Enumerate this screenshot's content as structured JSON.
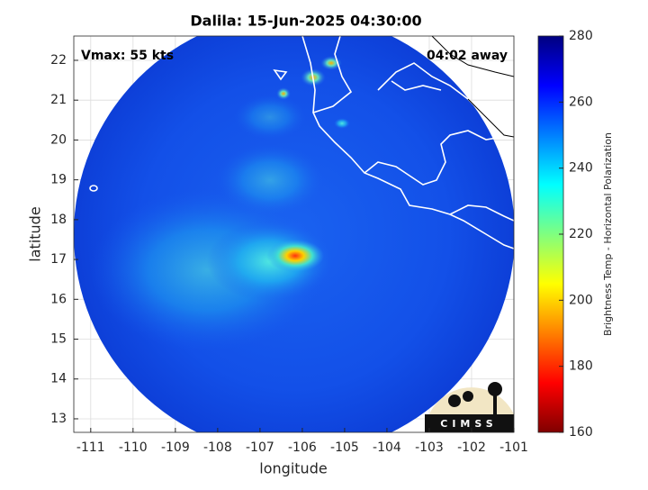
{
  "chart_data": {
    "type": "map",
    "title": "Dalila: 15-Jun-2025 04:30:00",
    "annotations": [
      "Vmax: 55 kts",
      "04:02 away"
    ],
    "xlabel": "longitude",
    "ylabel": "latitude",
    "xlim": [
      -111.4,
      -101
    ],
    "xticks": [
      -111,
      -110,
      -109,
      -108,
      -107,
      -106,
      -105,
      -104,
      -103,
      -102,
      -101
    ],
    "ylim": [
      12.66,
      22.61
    ],
    "yticks": [
      13,
      14,
      15,
      16,
      17,
      18,
      19,
      20,
      21,
      22
    ],
    "grid": true,
    "colorbar": {
      "label": "Brightness Temp - Horizontal Polarization",
      "lim": [
        160,
        280
      ],
      "ticks": [
        160,
        180,
        200,
        220,
        240,
        260,
        280
      ],
      "colormap": "jet"
    },
    "logo": "CIMSS"
  }
}
